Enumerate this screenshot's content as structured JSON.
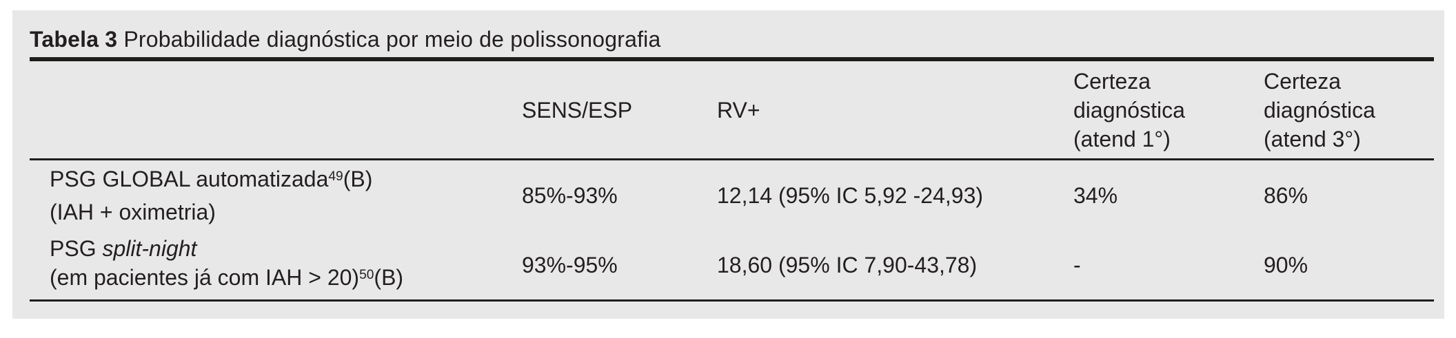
{
  "colors": {
    "panel_bg": "#e8e8e9",
    "text": "#231f20",
    "rule": "#1d1d1b"
  },
  "table": {
    "title": {
      "label": "Tabela 3",
      "caption": "Probabilidade diagnóstica por meio de polissonografia"
    },
    "header": {
      "col_method": "",
      "col_sens_esp": "SENS/ESP",
      "col_rv_plus": "RV+",
      "col_certeza_1": "Certeza\ndiagnóstica\n(atend 1°)",
      "col_certeza_3": "Certeza\ndiagnóstica\n(atend 3°)"
    },
    "rows": [
      {
        "label_line1": "PSG GLOBAL automatizada",
        "label_line1_ref": "49",
        "label_line1_grade": "(B)",
        "label_line2": "(IAH + oximetria)",
        "sens_esp": "85%-93%",
        "rv_plus": "12,14 (95% IC 5,92 -24,93)",
        "certeza_atend_1": "34%",
        "certeza_atend_3": "86%"
      },
      {
        "label_line1": "PSG ",
        "label_line1_italic": "split-night",
        "label_line2": "(em pacientes já com IAH > 20)",
        "label_line2_ref": "50",
        "label_line2_grade": "(B)",
        "sens_esp": "93%-95%",
        "rv_plus": "18,60 (95% IC 7,90-43,78)",
        "certeza_atend_1": "-",
        "certeza_atend_3": "90%"
      }
    ]
  }
}
